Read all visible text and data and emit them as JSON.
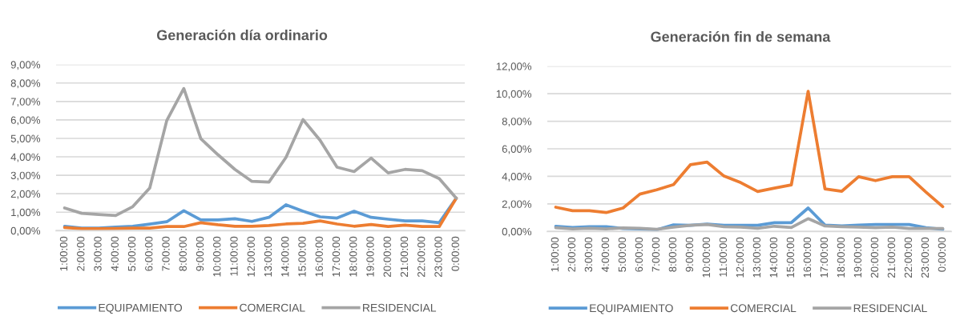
{
  "chart_data": [
    {
      "type": "line",
      "title": "Generación día ordinario",
      "categories": [
        "1:00:00",
        "2:00:00",
        "3:00:00",
        "4:00:00",
        "5:00:00",
        "6:00:00",
        "7:00:00",
        "8:00:00",
        "9:00:00",
        "10:00:00",
        "11:00:00",
        "12:00:00",
        "13:00:00",
        "14:00:00",
        "15:00:00",
        "16:00:00",
        "17:00:00",
        "18:00:00",
        "19:00:00",
        "20:00:00",
        "21:00:00",
        "22:00:00",
        "23:00:00",
        "0:00:00"
      ],
      "series": [
        {
          "name": "EQUIPAMIENTO",
          "color": "#5b9bd5",
          "values": [
            0.24,
            0.14,
            0.14,
            0.19,
            0.24,
            0.35,
            0.48,
            1.08,
            0.58,
            0.58,
            0.65,
            0.5,
            0.72,
            1.4,
            1.05,
            0.75,
            0.68,
            1.05,
            0.72,
            0.62,
            0.53,
            0.53,
            0.43,
            1.76
          ]
        },
        {
          "name": "COMERCIAL",
          "color": "#ed7d31",
          "values": [
            0.17,
            0.1,
            0.1,
            0.12,
            0.14,
            0.14,
            0.22,
            0.22,
            0.43,
            0.32,
            0.24,
            0.24,
            0.28,
            0.36,
            0.4,
            0.53,
            0.36,
            0.24,
            0.33,
            0.22,
            0.3,
            0.22,
            0.22,
            1.76
          ]
        },
        {
          "name": "RESIDENCIAL",
          "color": "#a5a5a5",
          "values": [
            1.23,
            0.94,
            0.87,
            0.82,
            1.3,
            2.31,
            5.97,
            7.7,
            4.98,
            4.12,
            3.32,
            2.67,
            2.63,
            3.97,
            6.02,
            4.9,
            3.44,
            3.2,
            3.93,
            3.13,
            3.32,
            3.25,
            2.82,
            1.76
          ]
        }
      ],
      "ylim": [
        0,
        9
      ],
      "yticks": [
        {
          "value": 0,
          "label": "0,00%"
        },
        {
          "value": 1,
          "label": "1,00%"
        },
        {
          "value": 2,
          "label": "2,00%"
        },
        {
          "value": 3,
          "label": "3,00%"
        },
        {
          "value": 4,
          "label": "4,00%"
        },
        {
          "value": 5,
          "label": "5,00%"
        },
        {
          "value": 6,
          "label": "6,00%"
        },
        {
          "value": 7,
          "label": "7,00%"
        },
        {
          "value": 8,
          "label": "8,00%"
        },
        {
          "value": 9,
          "label": "9,00%"
        }
      ],
      "grid": "y",
      "legend": "bottom"
    },
    {
      "type": "line",
      "title": "Generación fin de semana",
      "categories": [
        "1:00:00",
        "2:00:00",
        "3:00:00",
        "4:00:00",
        "5:00:00",
        "6:00:00",
        "7:00:00",
        "8:00:00",
        "9:00:00",
        "10:00:00",
        "11:00:00",
        "12:00:00",
        "13:00:00",
        "14:00:00",
        "15:00:00",
        "16:00:00",
        "17:00:00",
        "18:00:00",
        "19:00:00",
        "20:00:00",
        "21:00:00",
        "22:00:00",
        "23:00:00",
        "0:00:00"
      ],
      "series": [
        {
          "name": "EQUIPAMIENTO",
          "color": "#5b9bd5",
          "values": [
            0.38,
            0.29,
            0.35,
            0.35,
            0.21,
            0.19,
            0.12,
            0.48,
            0.44,
            0.54,
            0.45,
            0.44,
            0.44,
            0.64,
            0.64,
            1.7,
            0.46,
            0.4,
            0.46,
            0.5,
            0.5,
            0.5,
            0.27,
            0.15
          ]
        },
        {
          "name": "COMERCIAL",
          "color": "#ed7d31",
          "values": [
            1.76,
            1.51,
            1.51,
            1.37,
            1.7,
            2.71,
            3.02,
            3.4,
            4.84,
            5.03,
            4.02,
            3.54,
            2.9,
            3.15,
            3.38,
            10.18,
            3.09,
            2.92,
            3.97,
            3.69,
            3.97,
            3.97,
            2.86,
            1.8
          ]
        },
        {
          "name": "RESIDENCIAL",
          "color": "#a5a5a5",
          "values": [
            0.27,
            0.19,
            0.23,
            0.19,
            0.25,
            0.23,
            0.15,
            0.31,
            0.44,
            0.5,
            0.35,
            0.31,
            0.23,
            0.38,
            0.29,
            0.93,
            0.4,
            0.35,
            0.31,
            0.27,
            0.31,
            0.21,
            0.21,
            0.21
          ]
        }
      ],
      "ylim": [
        0,
        12
      ],
      "yticks": [
        {
          "value": 0,
          "label": "0,00%"
        },
        {
          "value": 2,
          "label": "2,00%"
        },
        {
          "value": 4,
          "label": "4,00%"
        },
        {
          "value": 6,
          "label": "6,00%"
        },
        {
          "value": 8,
          "label": "8,00%"
        },
        {
          "value": 10,
          "label": "10,00%"
        },
        {
          "value": 12,
          "label": "12,00%"
        }
      ],
      "grid": "y",
      "legend": "bottom"
    }
  ]
}
